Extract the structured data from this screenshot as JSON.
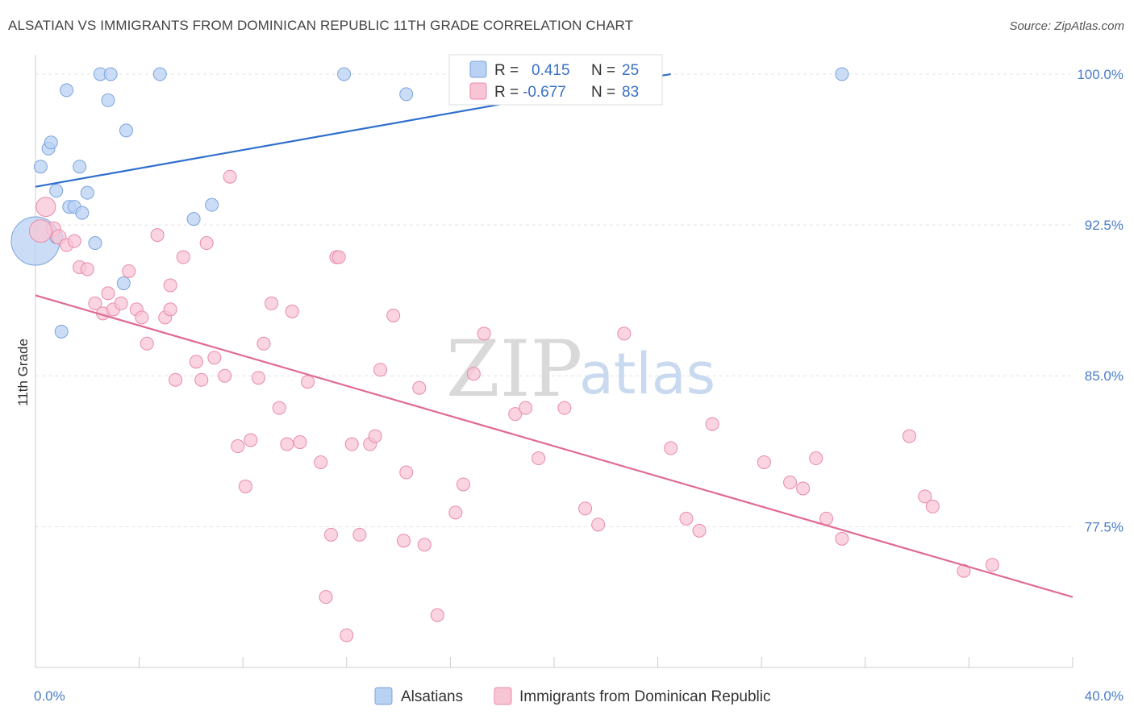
{
  "title": "ALSATIAN VS IMMIGRANTS FROM DOMINICAN REPUBLIC 11TH GRADE CORRELATION CHART",
  "source": "Source: ZipAtlas.com",
  "watermark": {
    "zip": "ZIP",
    "atlas": "atlas"
  },
  "legend_top": {
    "rows": [
      {
        "r_label": "R =",
        "r_value": "0.415",
        "n_label": "N =",
        "n_value": "25"
      },
      {
        "r_label": "R =",
        "r_value": "-0.677",
        "n_label": "N =",
        "n_value": "83"
      }
    ]
  },
  "legend_bottom": [
    "Alsatians",
    "Immigrants from Dominican Republic"
  ],
  "colors": {
    "alsatian_fill": "#b9d1f3",
    "alsatian_stroke": "#7ba3de",
    "alsatian_line": "#2f6fcc",
    "dominican_fill": "#f8c5d5",
    "dominican_stroke": "#e98aa9",
    "dominican_line": "#e06a93",
    "grid": "#e3e3e3",
    "tick_label": "#4a7cc9"
  },
  "chart_data": {
    "type": "scatter",
    "title": "ALSATIAN VS IMMIGRANTS FROM DOMINICAN REPUBLIC 11TH GRADE CORRELATION CHART",
    "xlabel": "",
    "ylabel": "11th Grade",
    "xlim": [
      0,
      40
    ],
    "ylim": [
      70.5,
      100.8
    ],
    "x_tick_labels": [
      "0.0%",
      "40.0%"
    ],
    "y_ticks": [
      77.5,
      85.0,
      92.5,
      100.0
    ],
    "y_tick_labels": [
      "77.5%",
      "85.0%",
      "92.5%",
      "100.0%"
    ],
    "grid": true,
    "legend_position": "top-center",
    "series": [
      {
        "name": "Alsatians",
        "trend": {
          "x": [
            0.0,
            24.5
          ],
          "y": [
            94.4,
            100.0
          ]
        },
        "points": [
          [
            0.0,
            91.7
          ],
          [
            0.2,
            95.4
          ],
          [
            0.5,
            96.3
          ],
          [
            0.6,
            96.6
          ],
          [
            0.8,
            94.2
          ],
          [
            0.8,
            91.9
          ],
          [
            1.0,
            87.2
          ],
          [
            1.2,
            99.2
          ],
          [
            1.3,
            93.4
          ],
          [
            1.5,
            93.4
          ],
          [
            1.7,
            95.4
          ],
          [
            1.8,
            93.1
          ],
          [
            2.0,
            94.1
          ],
          [
            2.3,
            91.6
          ],
          [
            2.5,
            100.0
          ],
          [
            2.8,
            98.7
          ],
          [
            2.9,
            100.0
          ],
          [
            3.5,
            97.2
          ],
          [
            3.4,
            89.6
          ],
          [
            4.8,
            100.0
          ],
          [
            6.1,
            92.8
          ],
          [
            6.8,
            93.5
          ],
          [
            11.9,
            100.0
          ],
          [
            14.3,
            99.0
          ],
          [
            31.1,
            100.0
          ]
        ],
        "sizes": [
          30,
          8,
          8,
          8,
          8,
          8,
          8,
          8,
          8,
          8,
          8,
          8,
          8,
          8,
          8,
          8,
          8,
          8,
          8,
          8,
          8,
          8,
          8,
          8,
          8
        ]
      },
      {
        "name": "Immigrants from Dominican Republic",
        "trend": {
          "x": [
            0.0,
            40.0
          ],
          "y": [
            89.0,
            74.0
          ]
        },
        "points": [
          [
            0.4,
            93.4
          ],
          [
            0.7,
            92.3
          ],
          [
            0.9,
            91.9
          ],
          [
            1.2,
            91.5
          ],
          [
            1.5,
            91.7
          ],
          [
            1.7,
            90.4
          ],
          [
            2.0,
            90.3
          ],
          [
            2.3,
            88.6
          ],
          [
            2.6,
            88.1
          ],
          [
            2.8,
            89.1
          ],
          [
            3.0,
            88.3
          ],
          [
            3.3,
            88.6
          ],
          [
            3.6,
            90.2
          ],
          [
            3.9,
            88.3
          ],
          [
            4.1,
            87.9
          ],
          [
            4.3,
            86.6
          ],
          [
            4.7,
            92.0
          ],
          [
            5.0,
            87.9
          ],
          [
            5.2,
            88.3
          ],
          [
            5.2,
            89.5
          ],
          [
            5.4,
            84.8
          ],
          [
            5.7,
            90.9
          ],
          [
            6.2,
            85.7
          ],
          [
            6.4,
            84.8
          ],
          [
            6.6,
            91.6
          ],
          [
            6.9,
            85.9
          ],
          [
            7.3,
            85.0
          ],
          [
            7.5,
            94.9
          ],
          [
            7.8,
            81.5
          ],
          [
            8.1,
            79.5
          ],
          [
            8.3,
            81.8
          ],
          [
            8.6,
            84.9
          ],
          [
            8.8,
            86.6
          ],
          [
            9.1,
            88.6
          ],
          [
            9.4,
            83.4
          ],
          [
            9.7,
            81.6
          ],
          [
            9.9,
            88.2
          ],
          [
            10.2,
            81.7
          ],
          [
            10.5,
            84.7
          ],
          [
            11.0,
            80.7
          ],
          [
            11.2,
            74.0
          ],
          [
            11.4,
            77.1
          ],
          [
            11.6,
            90.9
          ],
          [
            11.7,
            90.9
          ],
          [
            12.0,
            72.1
          ],
          [
            12.2,
            81.6
          ],
          [
            12.5,
            77.1
          ],
          [
            12.9,
            81.6
          ],
          [
            13.1,
            82.0
          ],
          [
            13.3,
            85.3
          ],
          [
            13.8,
            88.0
          ],
          [
            14.2,
            76.8
          ],
          [
            14.3,
            80.2
          ],
          [
            14.8,
            84.4
          ],
          [
            15.0,
            76.6
          ],
          [
            15.5,
            73.1
          ],
          [
            16.2,
            78.2
          ],
          [
            16.5,
            79.6
          ],
          [
            16.9,
            85.1
          ],
          [
            17.3,
            87.1
          ],
          [
            18.5,
            83.1
          ],
          [
            18.9,
            83.4
          ],
          [
            19.4,
            80.9
          ],
          [
            20.4,
            83.4
          ],
          [
            21.2,
            78.4
          ],
          [
            21.7,
            77.6
          ],
          [
            22.7,
            87.1
          ],
          [
            24.5,
            81.4
          ],
          [
            25.1,
            77.9
          ],
          [
            25.6,
            77.3
          ],
          [
            26.1,
            82.6
          ],
          [
            28.1,
            80.7
          ],
          [
            29.1,
            79.7
          ],
          [
            29.6,
            79.4
          ],
          [
            30.1,
            80.9
          ],
          [
            30.5,
            77.9
          ],
          [
            31.1,
            76.9
          ],
          [
            33.7,
            82.0
          ],
          [
            34.3,
            79.0
          ],
          [
            34.6,
            78.5
          ],
          [
            35.8,
            75.3
          ],
          [
            36.9,
            75.6
          ],
          [
            0.2,
            92.2
          ]
        ],
        "sizes": [
          12,
          9,
          9,
          8,
          8,
          8,
          8,
          8,
          8,
          8,
          8,
          8,
          8,
          8,
          8,
          8,
          8,
          8,
          8,
          8,
          8,
          8,
          8,
          8,
          8,
          8,
          8,
          8,
          8,
          8,
          8,
          8,
          8,
          8,
          8,
          8,
          8,
          8,
          8,
          8,
          8,
          8,
          8,
          8,
          8,
          8,
          8,
          8,
          8,
          8,
          8,
          8,
          8,
          8,
          8,
          8,
          8,
          8,
          8,
          8,
          8,
          8,
          8,
          8,
          8,
          8,
          8,
          8,
          8,
          8,
          8,
          8,
          8,
          8,
          8,
          8,
          8,
          8,
          8,
          8,
          8,
          8,
          14
        ]
      }
    ]
  }
}
